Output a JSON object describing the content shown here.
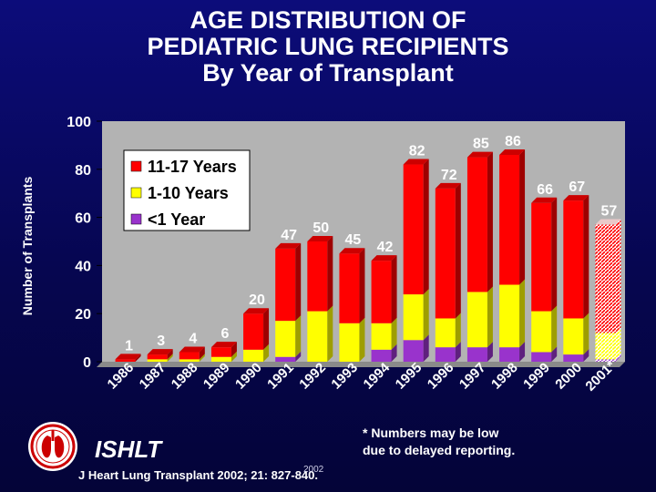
{
  "title": {
    "line1": "AGE DISTRIBUTION OF",
    "line2": "PEDIATRIC LUNG RECIPIENTS",
    "line3": "By Year of Transplant"
  },
  "chart_data": {
    "type": "bar",
    "stacked": true,
    "title": "AGE DISTRIBUTION OF PEDIATRIC LUNG RECIPIENTS By Year of Transplant",
    "xlabel": "",
    "ylabel": "Number of Transplants",
    "ylim": [
      0,
      100
    ],
    "yticks": [
      0,
      20,
      40,
      60,
      80,
      100
    ],
    "categories": [
      "1986",
      "1987",
      "1988",
      "1989",
      "1990",
      "1991",
      "1992",
      "1993",
      "1994",
      "1995",
      "1996",
      "1997",
      "1998",
      "1999",
      "2000",
      "2001*"
    ],
    "totals": [
      1,
      3,
      4,
      6,
      20,
      47,
      50,
      45,
      42,
      82,
      72,
      85,
      86,
      66,
      67,
      57
    ],
    "series": [
      {
        "name": "<1 Year",
        "color": "#9933cc",
        "values": [
          0,
          0,
          0,
          0,
          0,
          2,
          0,
          0,
          5,
          9,
          6,
          6,
          6,
          4,
          3,
          1
        ]
      },
      {
        "name": "1-10 Years",
        "color": "#ffff00",
        "values": [
          0,
          1,
          1,
          2,
          5,
          15,
          21,
          16,
          11,
          19,
          12,
          23,
          26,
          17,
          15,
          11
        ]
      },
      {
        "name": "11-17 Years",
        "color": "#ff0000",
        "values": [
          1,
          2,
          3,
          4,
          15,
          30,
          29,
          29,
          26,
          54,
          54,
          56,
          54,
          45,
          49,
          45
        ]
      }
    ],
    "hatched_category": "2001*",
    "legend": {
      "placement": "top-left",
      "entries": [
        "11-17 Years",
        "1-10 Years",
        "<1 Year"
      ]
    },
    "plot_bg": "#b3b3b3",
    "grid": false
  },
  "footnote": {
    "line1": "* Numbers may be low",
    "line2": "due to delayed reporting."
  },
  "organization": "ISHLT",
  "citation": "J Heart Lung Transplant 2002; 21: 827-840.",
  "year_stamp": "2002"
}
